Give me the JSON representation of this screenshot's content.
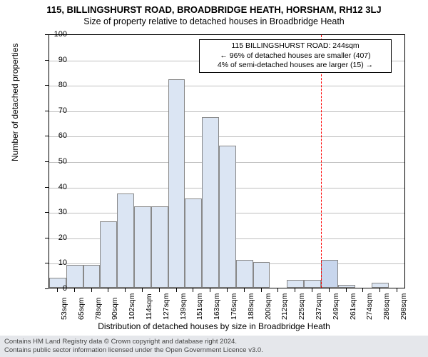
{
  "title": "115, BILLINGSHURST ROAD, BROADBRIDGE HEATH, HORSHAM, RH12 3LJ",
  "subtitle": "Size of property relative to detached houses in Broadbridge Heath",
  "ylabel": "Number of detached properties",
  "xlabel": "Distribution of detached houses by size in Broadbridge Heath",
  "chart": {
    "type": "histogram",
    "ylim": [
      0,
      100
    ],
    "ytick_step": 10,
    "background_color": "#ffffff",
    "grid_color": "#bfbfbf",
    "bar_fill": "#dbe5f3",
    "bar_border": "#888888",
    "border_color": "#000000",
    "highlight_line_color": "#ff0000",
    "highlight_line_dash": "3,3",
    "highlight_bar_fill": "#c8d6ed",
    "categories": [
      "53sqm",
      "65sqm",
      "78sqm",
      "90sqm",
      "102sqm",
      "114sqm",
      "127sqm",
      "139sqm",
      "151sqm",
      "163sqm",
      "176sqm",
      "188sqm",
      "200sqm",
      "212sqm",
      "225sqm",
      "237sqm",
      "249sqm",
      "261sqm",
      "274sqm",
      "286sqm",
      "298sqm"
    ],
    "values": [
      4,
      9,
      9,
      26,
      37,
      32,
      32,
      82,
      35,
      67,
      56,
      11,
      10,
      0,
      3,
      3,
      11,
      1,
      0,
      2,
      0
    ],
    "highlight_index": 16,
    "bar_width_ratio": 0.999,
    "tick_fontsize": 11,
    "label_fontsize": 12,
    "title_fontsize": 13
  },
  "annotation": {
    "line1": "115 BILLINGSHURST ROAD: 244sqm",
    "line2": "← 96% of detached houses are smaller (407)",
    "line3": "4% of semi-detached houses are larger (15) →",
    "border_color": "#000000",
    "background_color": "#ffffff"
  },
  "footer": {
    "line1": "Contains HM Land Registry data © Crown copyright and database right 2024.",
    "line2": "Contains public sector information licensed under the Open Government Licence v3.0.",
    "background_color": "#e5e7eb",
    "text_color": "#444444"
  }
}
